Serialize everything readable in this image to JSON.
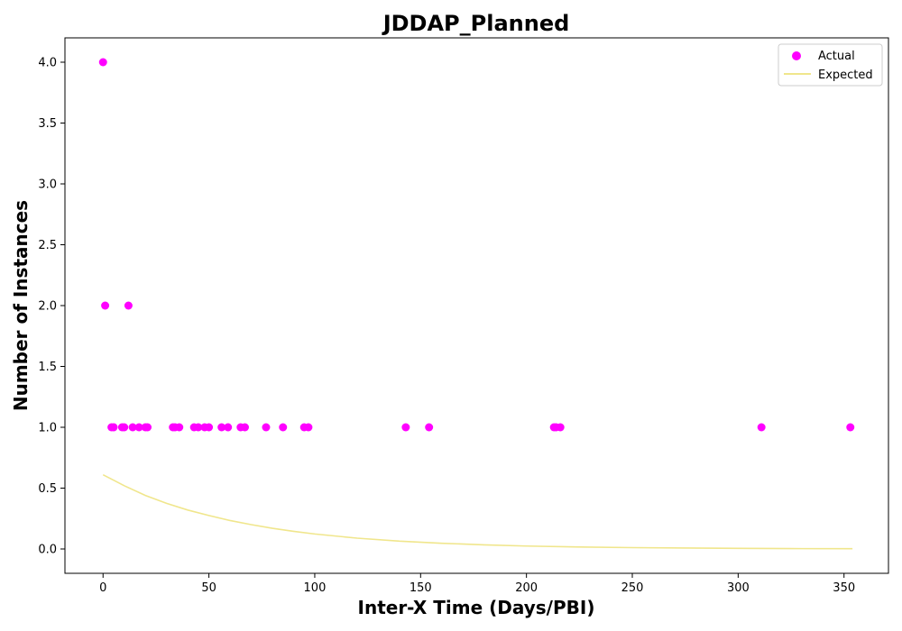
{
  "chart_data": {
    "type": "scatter",
    "title": "JDDAP_Planned",
    "xlabel": "Inter-X Time (Days/PBI)",
    "ylabel": "Number of Instances",
    "xlim": [
      -18,
      371
    ],
    "ylim": [
      -0.2,
      4.2
    ],
    "xticks": [
      0,
      50,
      100,
      150,
      200,
      250,
      300,
      350
    ],
    "yticks": [
      0.0,
      0.5,
      1.0,
      1.5,
      2.0,
      2.5,
      3.0,
      3.5,
      4.0
    ],
    "xtick_labels": [
      "0",
      "50",
      "100",
      "150",
      "200",
      "250",
      "300",
      "350"
    ],
    "ytick_labels": [
      "0.0",
      "0.5",
      "1.0",
      "1.5",
      "2.0",
      "2.5",
      "3.0",
      "3.5",
      "4.0"
    ],
    "grid": false,
    "legend": {
      "position": "top-right",
      "entries": [
        "Actual",
        "Expected"
      ]
    },
    "series": [
      {
        "name": "Actual",
        "kind": "scatter",
        "color": "#ff00ff",
        "points": [
          [
            0,
            4
          ],
          [
            1,
            2
          ],
          [
            12,
            2
          ],
          [
            4,
            1
          ],
          [
            5,
            1
          ],
          [
            9,
            1
          ],
          [
            10,
            1
          ],
          [
            14,
            1
          ],
          [
            17,
            1
          ],
          [
            20,
            1
          ],
          [
            21,
            1
          ],
          [
            33,
            1
          ],
          [
            34,
            1
          ],
          [
            36,
            1
          ],
          [
            43,
            1
          ],
          [
            45,
            1
          ],
          [
            48,
            1
          ],
          [
            50,
            1
          ],
          [
            56,
            1
          ],
          [
            59,
            1
          ],
          [
            65,
            1
          ],
          [
            67,
            1
          ],
          [
            77,
            1
          ],
          [
            85,
            1
          ],
          [
            95,
            1
          ],
          [
            97,
            1
          ],
          [
            143,
            1
          ],
          [
            154,
            1
          ],
          [
            213,
            1
          ],
          [
            214,
            1
          ],
          [
            216,
            1
          ],
          [
            311,
            1
          ],
          [
            353,
            1
          ]
        ]
      },
      {
        "name": "Expected",
        "kind": "line",
        "color": "#f0e68c",
        "points": [
          [
            0,
            0.61
          ],
          [
            10,
            0.52
          ],
          [
            20,
            0.44
          ],
          [
            30,
            0.375
          ],
          [
            40,
            0.32
          ],
          [
            50,
            0.275
          ],
          [
            60,
            0.234
          ],
          [
            70,
            0.2
          ],
          [
            80,
            0.17
          ],
          [
            90,
            0.145
          ],
          [
            100,
            0.123
          ],
          [
            120,
            0.089
          ],
          [
            140,
            0.064
          ],
          [
            160,
            0.047
          ],
          [
            180,
            0.034
          ],
          [
            200,
            0.024
          ],
          [
            225,
            0.016
          ],
          [
            250,
            0.011
          ],
          [
            275,
            0.008
          ],
          [
            300,
            0.005
          ],
          [
            325,
            0.003
          ],
          [
            354,
            0.002
          ]
        ]
      }
    ]
  }
}
